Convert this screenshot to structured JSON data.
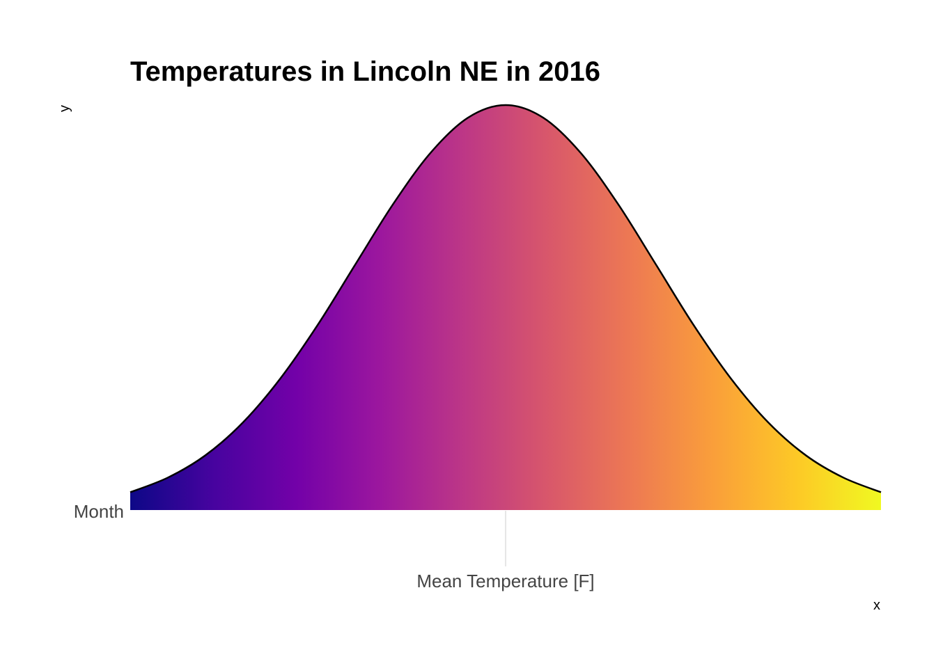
{
  "chart_data": {
    "type": "area",
    "title": "Temperatures in Lincoln NE in 2016",
    "xlabel": "x",
    "ylabel": "y",
    "x_tick_labels": [
      "Mean Temperature [F]"
    ],
    "y_tick_labels": [
      "Month"
    ],
    "grid": false,
    "legend": "none",
    "series": [
      {
        "kind": "density-ridge",
        "category": "Month",
        "x": [
          -2.5,
          -2.25,
          -2.0,
          -1.75,
          -1.5,
          -1.25,
          -1.0,
          -0.75,
          -0.5,
          -0.25,
          0.0,
          0.25,
          0.5,
          0.75,
          1.0,
          1.25,
          1.5,
          1.75,
          2.0,
          2.25,
          2.5
        ],
        "y": [
          0.044,
          0.08,
          0.135,
          0.216,
          0.325,
          0.458,
          0.607,
          0.755,
          0.882,
          0.969,
          1.0,
          0.969,
          0.882,
          0.755,
          0.607,
          0.458,
          0.325,
          0.216,
          0.135,
          0.08,
          0.044
        ]
      }
    ],
    "fill_gradient": {
      "palette": "plasma",
      "stops": [
        "#0d0887",
        "#47039f",
        "#7301a8",
        "#9c179e",
        "#bd3786",
        "#d8576b",
        "#ed7953",
        "#fa9f3a",
        "#fdc926",
        "#f0f921"
      ]
    },
    "colors": {
      "outline": "#000000",
      "tick_line": "#cccccc"
    }
  }
}
